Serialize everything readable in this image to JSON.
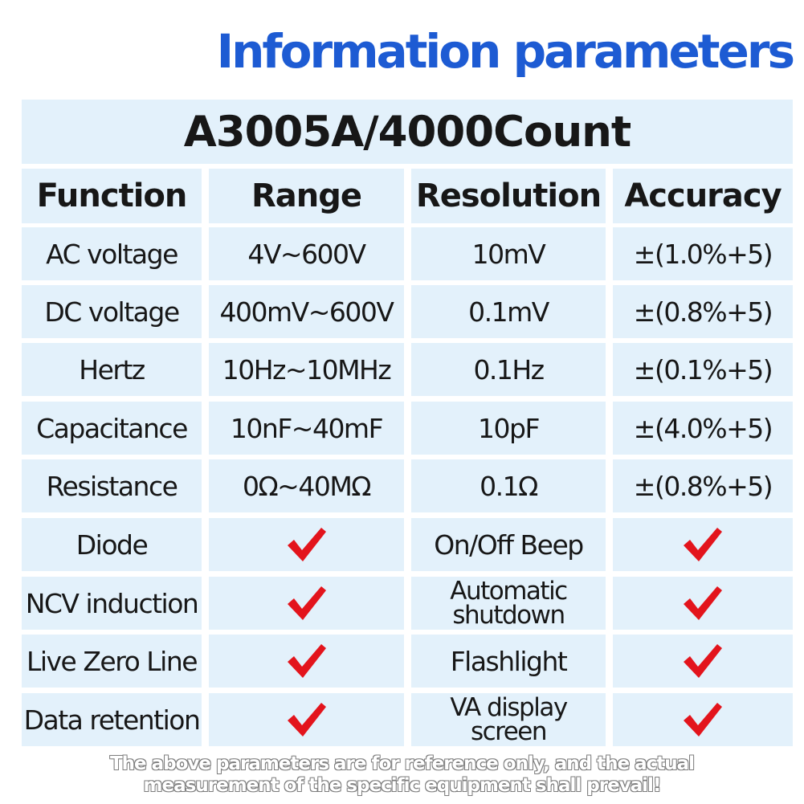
{
  "page": {
    "title": "Information parameters"
  },
  "table": {
    "model": "A3005A/4000Count",
    "headers": [
      "Function",
      "Range",
      "Resolution",
      "Accuracy"
    ],
    "measure_rows": [
      {
        "function": "AC voltage",
        "range": "4V~600V",
        "resolution": "10mV",
        "accuracy": "±(1.0%+5)"
      },
      {
        "function": "DC voltage",
        "range": "400mV~600V",
        "resolution": "0.1mV",
        "accuracy": "±(0.8%+5)"
      },
      {
        "function": "Hertz",
        "range": "10Hz~10MHz",
        "resolution": "0.1Hz",
        "accuracy": "±(0.1%+5)"
      },
      {
        "function": "Capacitance",
        "range": "10nF~40mF",
        "resolution": "10pF",
        "accuracy": "±(4.0%+5)"
      },
      {
        "function": "Resistance",
        "range": "0Ω~40MΩ",
        "resolution": "0.1Ω",
        "accuracy": "±(0.8%+5)"
      }
    ],
    "feature_rows": [
      {
        "left": "Diode",
        "left_supported": true,
        "right": "On/Off Beep",
        "right_supported": true
      },
      {
        "left": "NCV induction",
        "left_supported": true,
        "right": "Automatic shutdown",
        "right_supported": true
      },
      {
        "left": "Live Zero Line",
        "left_supported": true,
        "right": "Flashlight",
        "right_supported": true
      },
      {
        "left": "Data retention",
        "left_supported": true,
        "right": "VA display screen",
        "right_supported": true
      }
    ]
  },
  "footer": {
    "line1": "The above parameters are for reference only, and the actual",
    "line2": "measurement of the specific equipment shall prevail!"
  },
  "colors": {
    "title_blue": "#1d5bd3",
    "cell_bg": "#e3f1fb",
    "check_red": "#e3141c",
    "text": "#171717"
  }
}
